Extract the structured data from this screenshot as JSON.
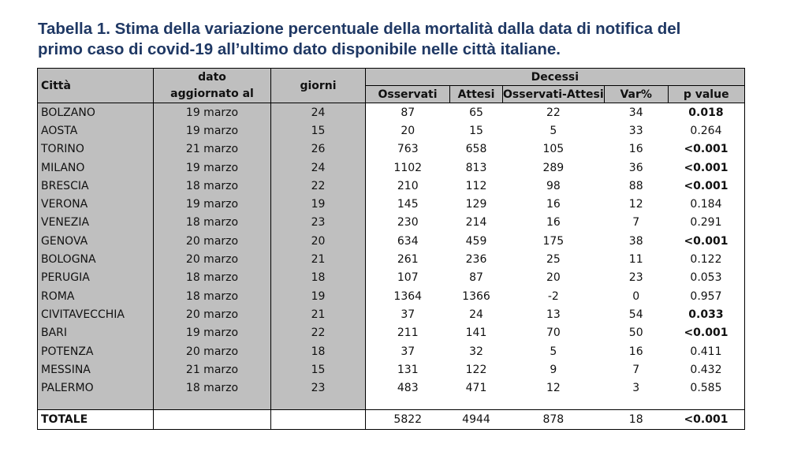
{
  "title": {
    "line1": "Tabella 1. Stima della variazione percentuale della mortalità dalla data di notifica del",
    "line2": "primo caso di covid-19 all’ultimo dato disponibile nelle città italiane."
  },
  "headers": {
    "city": "Città",
    "date_top": "dato",
    "date_bottom": "aggiornato al",
    "days": "giorni",
    "deaths": "Decessi",
    "observed": "Osservati",
    "expected": "Attesi",
    "diff": "Osservati-Attesi",
    "var": "Var%",
    "p": "p value"
  },
  "rows": [
    {
      "city": "BOLZANO",
      "date": "19 marzo",
      "days": "24",
      "obs": "87",
      "exp": "65",
      "diff": "22",
      "var": "34",
      "p": "0.018",
      "p_bold": true
    },
    {
      "city": "AOSTA",
      "date": "19 marzo",
      "days": "15",
      "obs": "20",
      "exp": "15",
      "diff": "5",
      "var": "33",
      "p": "0.264",
      "p_bold": false
    },
    {
      "city": "TORINO",
      "date": "21 marzo",
      "days": "26",
      "obs": "763",
      "exp": "658",
      "diff": "105",
      "var": "16",
      "p": "<0.001",
      "p_bold": true
    },
    {
      "city": "MILANO",
      "date": "19 marzo",
      "days": "24",
      "obs": "1102",
      "exp": "813",
      "diff": "289",
      "var": "36",
      "p": "<0.001",
      "p_bold": true
    },
    {
      "city": "BRESCIA",
      "date": "18 marzo",
      "days": "22",
      "obs": "210",
      "exp": "112",
      "diff": "98",
      "var": "88",
      "p": "<0.001",
      "p_bold": true
    },
    {
      "city": "VERONA",
      "date": "19 marzo",
      "days": "19",
      "obs": "145",
      "exp": "129",
      "diff": "16",
      "var": "12",
      "p": "0.184",
      "p_bold": false
    },
    {
      "city": "VENEZIA",
      "date": "18 marzo",
      "days": "23",
      "obs": "230",
      "exp": "214",
      "diff": "16",
      "var": "7",
      "p": "0.291",
      "p_bold": false
    },
    {
      "city": "GENOVA",
      "date": "20 marzo",
      "days": "20",
      "obs": "634",
      "exp": "459",
      "diff": "175",
      "var": "38",
      "p": "<0.001",
      "p_bold": true
    },
    {
      "city": "BOLOGNA",
      "date": "20 marzo",
      "days": "21",
      "obs": "261",
      "exp": "236",
      "diff": "25",
      "var": "11",
      "p": "0.122",
      "p_bold": false
    },
    {
      "city": "PERUGIA",
      "date": "18 marzo",
      "days": "18",
      "obs": "107",
      "exp": "87",
      "diff": "20",
      "var": "23",
      "p": "0.053",
      "p_bold": false
    },
    {
      "city": "ROMA",
      "date": "18 marzo",
      "days": "19",
      "obs": "1364",
      "exp": "1366",
      "diff": "-2",
      "var": "0",
      "p": "0.957",
      "p_bold": false
    },
    {
      "city": "CIVITAVECCHIA",
      "date": "20 marzo",
      "days": "21",
      "obs": "37",
      "exp": "24",
      "diff": "13",
      "var": "54",
      "p": "0.033",
      "p_bold": true
    },
    {
      "city": "BARI",
      "date": "19 marzo",
      "days": "22",
      "obs": "211",
      "exp": "141",
      "diff": "70",
      "var": "50",
      "p": "<0.001",
      "p_bold": true
    },
    {
      "city": "POTENZA",
      "date": "20 marzo",
      "days": "18",
      "obs": "37",
      "exp": "32",
      "diff": "5",
      "var": "16",
      "p": "0.411",
      "p_bold": false
    },
    {
      "city": "MESSINA",
      "date": "21 marzo",
      "days": "15",
      "obs": "131",
      "exp": "122",
      "diff": "9",
      "var": "7",
      "p": "0.432",
      "p_bold": false
    },
    {
      "city": "PALERMO",
      "date": "18 marzo",
      "days": "23",
      "obs": "483",
      "exp": "471",
      "diff": "12",
      "var": "3",
      "p": "0.585",
      "p_bold": false
    }
  ],
  "total": {
    "label": "TOTALE",
    "obs": "5822",
    "exp": "4944",
    "diff": "878",
    "var": "18",
    "p": "<0.001"
  }
}
